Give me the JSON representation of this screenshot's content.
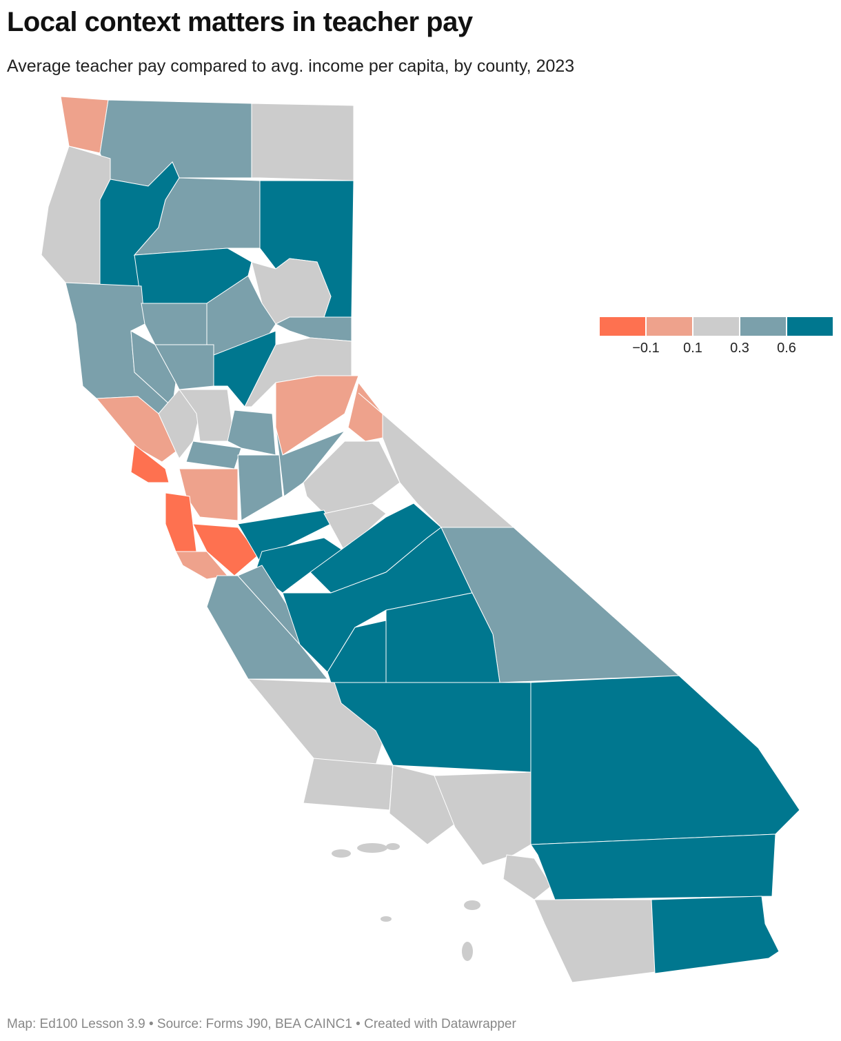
{
  "header": {
    "title": "Local context matters in teacher pay",
    "subtitle": "Average teacher pay compared to avg. income per capita, by county, 2023"
  },
  "legend": {
    "colors": [
      "#fe7150",
      "#eea28c",
      "#cccccc",
      "#7ba0ab",
      "#00778f"
    ],
    "ticks": [
      {
        "value": -0.1,
        "label": "−0.1"
      },
      0.1,
      0.3,
      0.6
    ]
  },
  "footer": "Map: Ed100 Lesson 3.9 • Source: Forms J90, BEA CAINC1 • Created with Datawrapper"
}
